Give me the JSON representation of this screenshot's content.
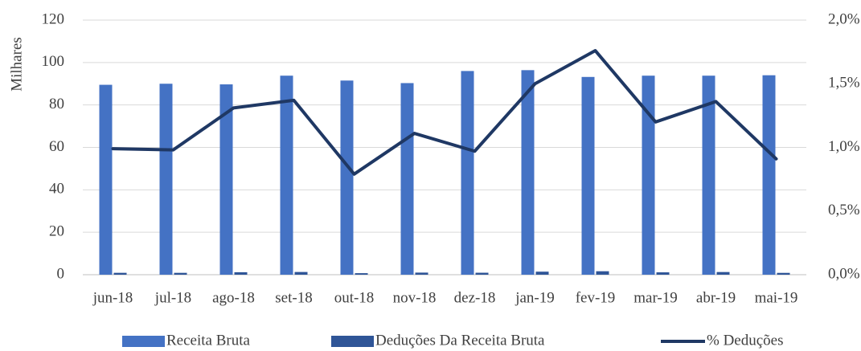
{
  "chart_data": {
    "type": "bar",
    "ylabel": "Milhares",
    "categories": [
      "jun-18",
      "jul-18",
      "ago-18",
      "set-18",
      "out-18",
      "nov-18",
      "dez-18",
      "jan-19",
      "fev-19",
      "mar-19",
      "abr-19",
      "mai-19"
    ],
    "series": [
      {
        "name": "Receita Bruta",
        "color": "#4472c4",
        "type": "bar",
        "values": [
          89.5,
          90,
          89.7,
          93.8,
          91.5,
          90.3,
          96,
          96.4,
          93.2,
          93.8,
          93.8,
          94
        ]
      },
      {
        "name": "Deduções Da Receita Bruta",
        "color": "#2f5597",
        "type": "bar",
        "values": [
          0.89,
          0.88,
          1.17,
          1.28,
          0.72,
          0.99,
          0.93,
          1.43,
          1.63,
          1.12,
          1.26,
          0.86
        ]
      },
      {
        "name": "% Deduções",
        "color": "#1f3864",
        "type": "line",
        "axis": "y2",
        "values": [
          0.99,
          0.98,
          1.31,
          1.37,
          0.79,
          1.11,
          0.97,
          1.5,
          1.76,
          1.2,
          1.36,
          0.91
        ]
      }
    ],
    "ylim": [
      0,
      120
    ],
    "yticks": [
      0,
      20,
      40,
      60,
      80,
      100,
      120
    ],
    "y2lim": [
      0,
      2.0
    ],
    "y2ticks": [
      {
        "value": 0,
        "label": "0,0%"
      },
      {
        "value": 0.5,
        "label": "0,5%"
      },
      {
        "value": 1.0,
        "label": "1,0%"
      },
      {
        "value": 1.5,
        "label": "1,5%"
      },
      {
        "value": 2.0,
        "label": "2,0%"
      }
    ],
    "grid": true,
    "legend": "bottom"
  }
}
